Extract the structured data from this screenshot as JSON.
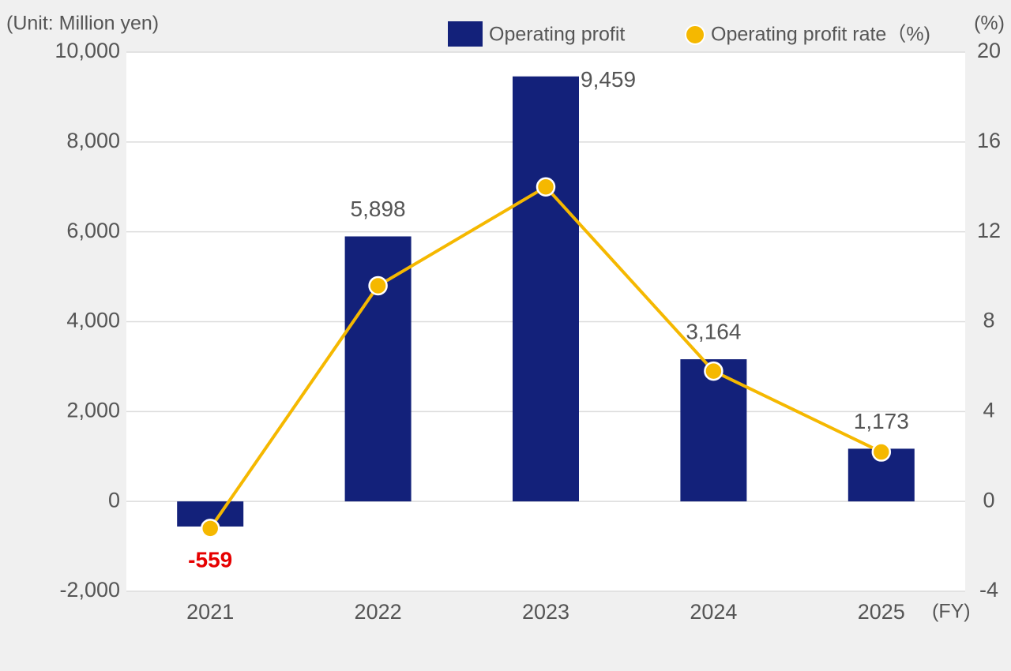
{
  "chart_data": {
    "type": "bar-line",
    "unit_label": "(Unit: Million yen)",
    "y2_unit_label": "(%)",
    "x_unit_label": "(FY)",
    "categories": [
      "2021",
      "2022",
      "2023",
      "2024",
      "2025"
    ],
    "series": [
      {
        "name": "Operating profit",
        "type": "bar",
        "color": "#13217a",
        "values": [
          -559,
          5898,
          9459,
          3164,
          1173
        ],
        "value_labels": [
          "-559",
          "5,898",
          "9,459",
          "3,164",
          "1,173"
        ],
        "negative_label_color": "#e60000"
      },
      {
        "name": "Operating profit rate（%)",
        "type": "line",
        "axis": "y2",
        "color": "#f5b800",
        "values": [
          -1.2,
          9.6,
          14.0,
          5.8,
          2.2
        ]
      }
    ],
    "ylim": [
      -2000,
      10000
    ],
    "yticks": [
      {
        "value": -2000,
        "label": "-2,000"
      },
      0,
      {
        "value": 2000,
        "label": "2,000"
      },
      {
        "value": 4000,
        "label": "4,000"
      },
      {
        "value": 6000,
        "label": "6,000"
      },
      {
        "value": 8000,
        "label": "8,000"
      },
      {
        "value": 10000,
        "label": "10,000"
      }
    ],
    "y2lim": [
      -4,
      20
    ],
    "y2ticks": [
      -4,
      0,
      4,
      8,
      12,
      16,
      20
    ],
    "grid": true
  }
}
